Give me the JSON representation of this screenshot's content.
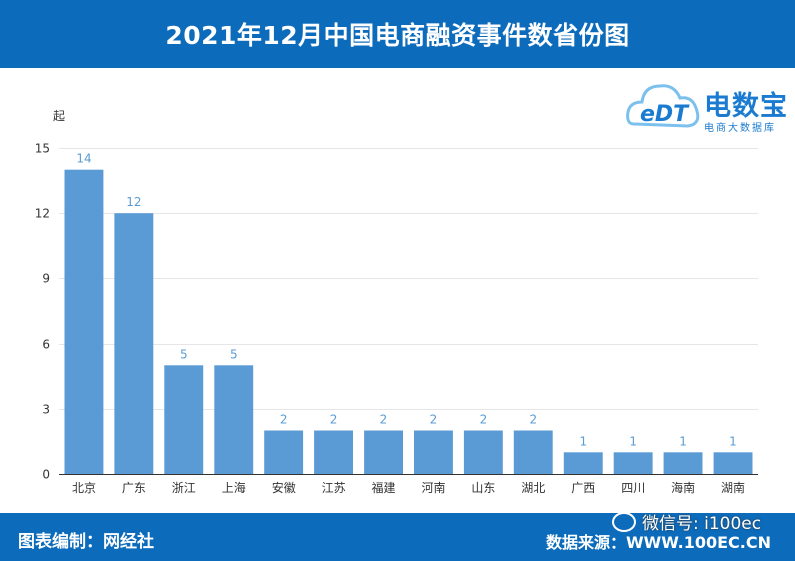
{
  "header": {
    "title": "2021年12月中国电商融资事件数省份图"
  },
  "logo": {
    "brand": "电数宝",
    "sub": "电商大数据库",
    "mark": "eDT"
  },
  "footer": {
    "left": "图表编制：网经社",
    "right": "数据来源：WWW.100EC.CN",
    "watermark": "微信号: i100ec"
  },
  "chart_data": {
    "type": "bar",
    "ylabel": "起",
    "ylim": [
      0,
      15
    ],
    "yticks": [
      0,
      3,
      6,
      9,
      12,
      15
    ],
    "categories": [
      "北京",
      "广东",
      "浙江",
      "上海",
      "安徽",
      "江苏",
      "福建",
      "河南",
      "山东",
      "湖北",
      "广西",
      "四川",
      "海南",
      "湖南"
    ],
    "values": [
      14,
      12,
      5,
      5,
      2,
      2,
      2,
      2,
      2,
      2,
      1,
      1,
      1,
      1
    ],
    "bar_color": "#5b9bd5",
    "label_color": "#5b9bd5",
    "grid": true
  }
}
